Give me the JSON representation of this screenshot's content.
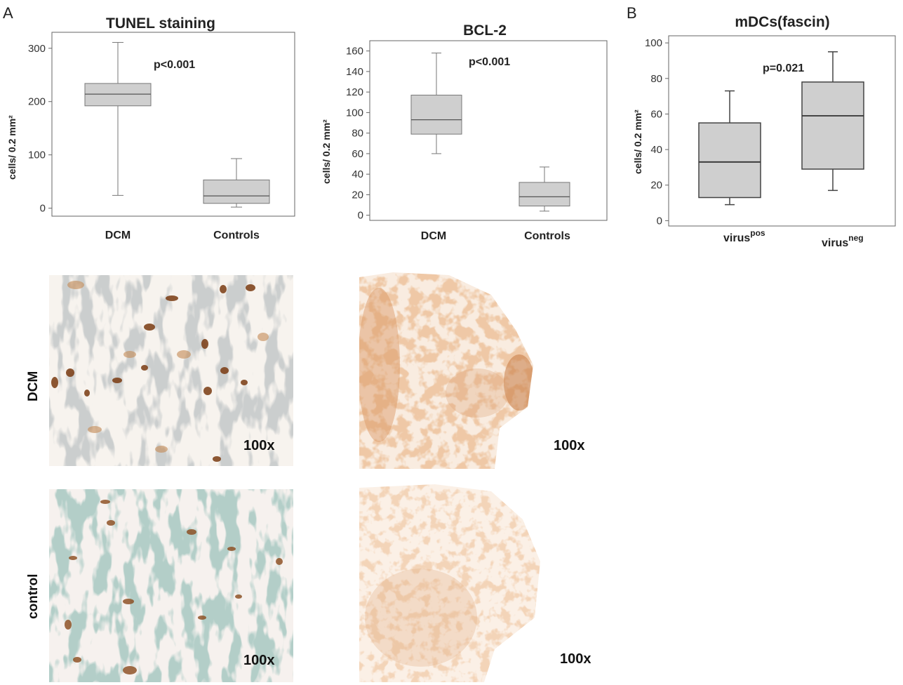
{
  "panels": {
    "a_letter": "A",
    "b_letter": "B"
  },
  "chart_data": [
    {
      "type": "box",
      "title": "TUNEL staining",
      "ylabel": "cells/ 0.2 mm²",
      "ylim": [
        -15,
        330
      ],
      "yticks": [
        0,
        100,
        200,
        300
      ],
      "annotation": "p<0.001",
      "categories": [
        "DCM",
        "Controls"
      ],
      "boxes": [
        {
          "category": "DCM",
          "min": 24,
          "q1": 192,
          "median": 214,
          "q3": 234,
          "max": 311
        },
        {
          "category": "Controls",
          "min": 2,
          "q1": 9,
          "median": 23,
          "q3": 53,
          "max": 93
        }
      ]
    },
    {
      "type": "box",
      "title": "BCL-2",
      "ylabel": "cells/ 0.2 mm²",
      "ylim": [
        -5,
        170
      ],
      "yticks": [
        0,
        20,
        40,
        60,
        80,
        100,
        120,
        140,
        160
      ],
      "annotation": "p<0.001",
      "categories": [
        "DCM",
        "Controls"
      ],
      "boxes": [
        {
          "category": "DCM",
          "min": 60,
          "q1": 79,
          "median": 93,
          "q3": 117,
          "max": 158
        },
        {
          "category": "Controls",
          "min": 4,
          "q1": 9,
          "median": 18,
          "q3": 32,
          "max": 47
        }
      ]
    },
    {
      "type": "box",
      "title": "mDCs(fascin)",
      "ylabel": "cells/ 0.2 mm²",
      "ylim": [
        -3,
        104
      ],
      "yticks": [
        0,
        20,
        40,
        60,
        80,
        100
      ],
      "annotation": "p=0.021",
      "categories": [
        "virus",
        "virus"
      ],
      "category_superscripts": [
        "pos",
        "neg"
      ],
      "boxes": [
        {
          "category": "virus pos",
          "min": 9,
          "q1": 13,
          "median": 33,
          "q3": 55,
          "max": 73
        },
        {
          "category": "virus neg",
          "min": 17,
          "q1": 29,
          "median": 59,
          "q3": 78,
          "max": 95
        }
      ]
    }
  ],
  "micrographs": {
    "row_labels": [
      "DCM",
      "control"
    ],
    "magnification": "100x"
  }
}
